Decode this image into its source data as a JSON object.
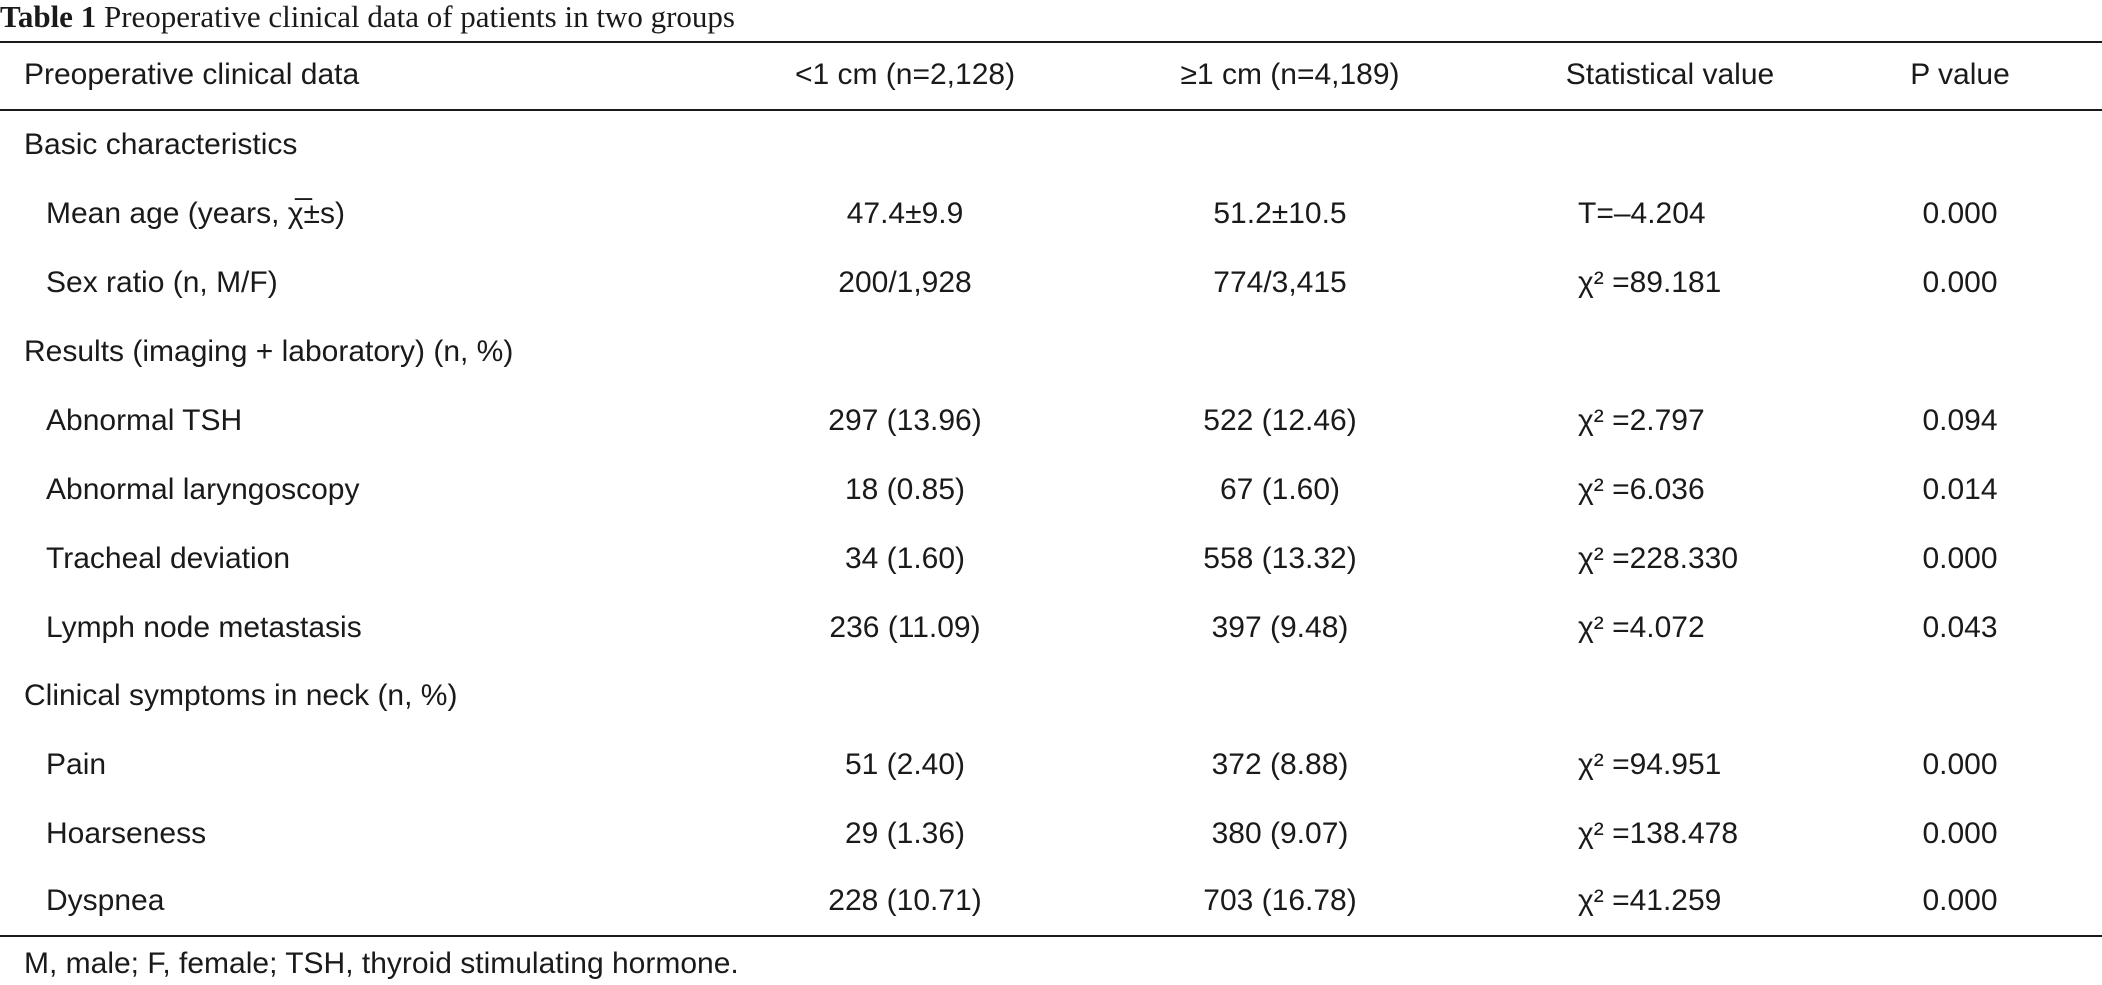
{
  "caption": {
    "label": "Table 1",
    "text": " Preoperative clinical data of patients in two groups"
  },
  "columns": [
    "Preoperative clinical data",
    "<1 cm (n=2,128)",
    "≥1 cm (n=4,189)",
    "Statistical value",
    "P value"
  ],
  "rows": [
    {
      "type": "section",
      "label": "Basic characteristics"
    },
    {
      "type": "item",
      "label": "Mean age (years, χ̅±s)",
      "lt1": "47.4±9.9",
      "ge1": "51.2±10.5",
      "stat": "T=–4.204",
      "p": "0.000"
    },
    {
      "type": "item",
      "label": "Sex ratio (n, M/F)",
      "lt1": "200/1,928",
      "ge1": "774/3,415",
      "stat": "χ² =89.181",
      "p": "0.000"
    },
    {
      "type": "section",
      "label": "Results (imaging + laboratory) (n, %)"
    },
    {
      "type": "item",
      "label": "Abnormal TSH",
      "lt1": "297 (13.96)",
      "ge1": "522 (12.46)",
      "stat": "χ² =2.797",
      "p": "0.094"
    },
    {
      "type": "item",
      "label": "Abnormal laryngoscopy",
      "lt1": "18 (0.85)",
      "ge1": "67 (1.60)",
      "stat": "χ² =6.036",
      "p": "0.014"
    },
    {
      "type": "item",
      "label": "Tracheal deviation",
      "lt1": "34 (1.60)",
      "ge1": "558 (13.32)",
      "stat": "χ² =228.330",
      "p": "0.000"
    },
    {
      "type": "item",
      "label": "Lymph node metastasis",
      "lt1": "236 (11.09)",
      "ge1": "397 (9.48)",
      "stat": "χ² =4.072",
      "p": "0.043"
    },
    {
      "type": "section",
      "label": "Clinical symptoms in neck (n, %)"
    },
    {
      "type": "item",
      "label": "Pain",
      "lt1": "51 (2.40)",
      "ge1": "372 (8.88)",
      "stat": "χ² =94.951",
      "p": "0.000"
    },
    {
      "type": "item",
      "label": "Hoarseness",
      "lt1": "29 (1.36)",
      "ge1": "380 (9.07)",
      "stat": "χ² =138.478",
      "p": "0.000"
    },
    {
      "type": "item",
      "label": "Dyspnea",
      "lt1": "228 (10.71)",
      "ge1": "703 (16.78)",
      "stat": "χ² =41.259",
      "p": "0.000"
    }
  ],
  "footnote": "M, male; F, female; TSH, thyroid stimulating hormone."
}
